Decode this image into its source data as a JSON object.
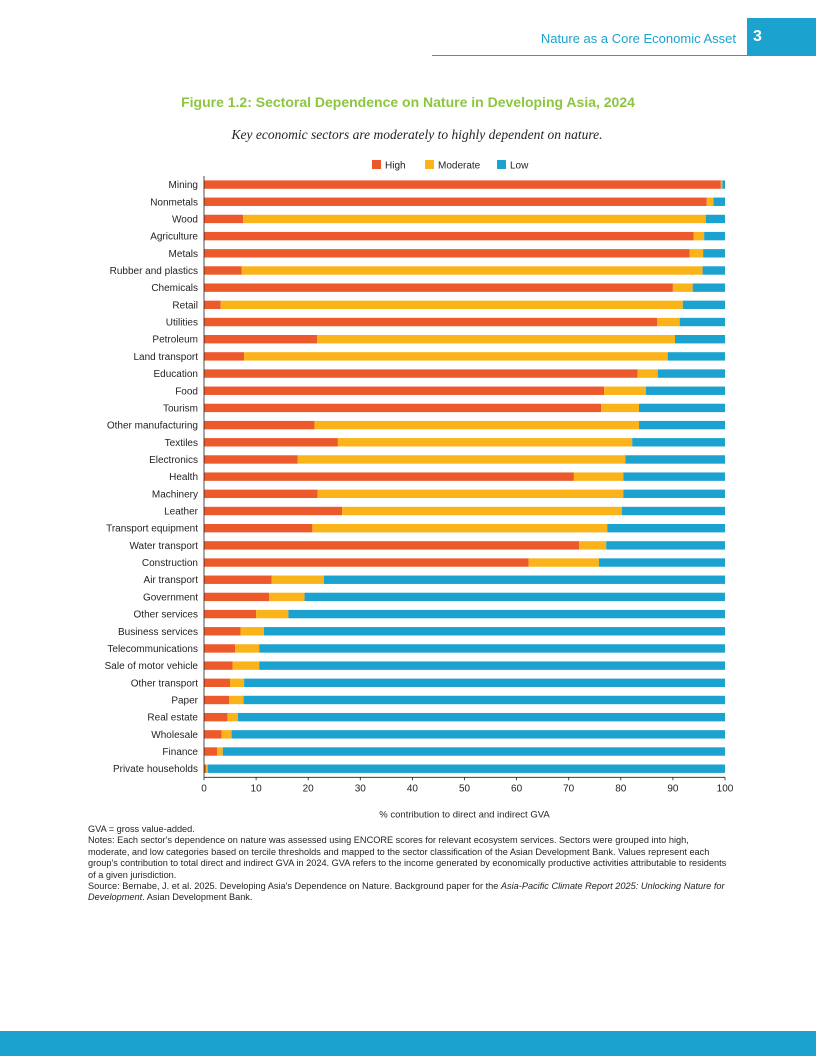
{
  "header": {
    "running_title": "Nature as a Core Economic Asset",
    "page_number": "3",
    "accent_color": "#1ba2cf"
  },
  "figure": {
    "title": "Figure 1.2: Sectoral Dependence on Nature in Developing Asia, 2024",
    "subtitle": "Key economic sectors are moderately to highly dependent on nature.",
    "title_color": "#8cc63f"
  },
  "chart_data": {
    "type": "bar",
    "orientation": "horizontal",
    "stacked": true,
    "categories": [
      "Mining",
      "Nonmetals",
      "Wood",
      "Agriculture",
      "Metals",
      "Rubber and plastics",
      "Chemicals",
      "Retail",
      "Utilities",
      "Petroleum",
      "Land transport",
      "Education",
      "Food",
      "Tourism",
      "Other manufacturing",
      "Textiles",
      "Electronics",
      "Health",
      "Machinery",
      "Leather",
      "Transport equipment",
      "Water transport",
      "Construction",
      "Air transport",
      "Government",
      "Other services",
      "Business services",
      "Telecommunications",
      "Sale of motor vehicle",
      "Other transport",
      "Paper",
      "Real estate",
      "Wholesale",
      "Finance",
      "Private households"
    ],
    "series": [
      {
        "name": "High",
        "color": "#ec5a2c",
        "values": [
          99.2,
          96.5,
          7.5,
          94.0,
          93.2,
          7.2,
          90.0,
          3.2,
          87.0,
          21.7,
          7.7,
          83.2,
          76.8,
          76.2,
          21.2,
          25.7,
          18.0,
          71.0,
          21.8,
          26.5,
          20.8,
          72.0,
          62.3,
          13.0,
          12.5,
          10.0,
          7.0,
          6.0,
          5.5,
          5.0,
          4.8,
          4.5,
          3.4,
          2.5,
          0.4
        ]
      },
      {
        "name": "Moderate",
        "color": "#fbb31a",
        "values": [
          0.3,
          1.3,
          88.8,
          2.0,
          2.6,
          88.5,
          3.8,
          88.7,
          4.3,
          68.7,
          81.3,
          3.9,
          8.0,
          7.3,
          62.3,
          56.5,
          62.9,
          9.5,
          58.7,
          53.7,
          56.6,
          5.2,
          13.5,
          10.0,
          6.8,
          6.2,
          4.5,
          4.6,
          5.1,
          2.7,
          2.8,
          2.0,
          1.9,
          1.1,
          0.3
        ]
      },
      {
        "name": "Low",
        "color": "#1ba2cf",
        "values": [
          0.5,
          2.2,
          3.7,
          4.0,
          4.2,
          4.3,
          6.2,
          8.1,
          8.7,
          9.6,
          11.0,
          12.9,
          15.2,
          16.5,
          16.5,
          17.8,
          19.1,
          19.5,
          19.5,
          19.8,
          22.6,
          22.8,
          24.2,
          77.0,
          80.7,
          83.8,
          88.5,
          89.4,
          89.4,
          92.3,
          92.4,
          93.5,
          94.7,
          96.4,
          99.3
        ]
      }
    ],
    "x_ticks": [
      "0",
      "10",
      "20",
      "30",
      "40",
      "50",
      "60",
      "70",
      "80",
      "90",
      "100"
    ],
    "xlim": [
      0,
      100
    ],
    "xlabel": "% contribution to direct and indirect GVA",
    "ylabel": "",
    "legend_position": "top-center",
    "grid": false
  },
  "notes": {
    "abbreviation": "GVA = gross value-added.",
    "notes_text": "Notes: Each sector's dependence on nature was assessed using ENCORE scores for relevant ecosystem services. Sectors were grouped into high, moderate, and low categories based on tercile thresholds and mapped to the sector classification of the Asian Development Bank. Values represent each group's contribution to total direct and indirect GVA in 2024. GVA refers to the income generated by economically productive activities attributable to residents of a given jurisdiction.",
    "source_prefix": "Source: Bernabe, J. et al. 2025. Developing Asia's Dependence on Nature. Background paper for the ",
    "source_title": "Asia-Pacific Climate Report 2025: Unlocking Nature for Development",
    "source_suffix": ". Asian Development Bank."
  }
}
